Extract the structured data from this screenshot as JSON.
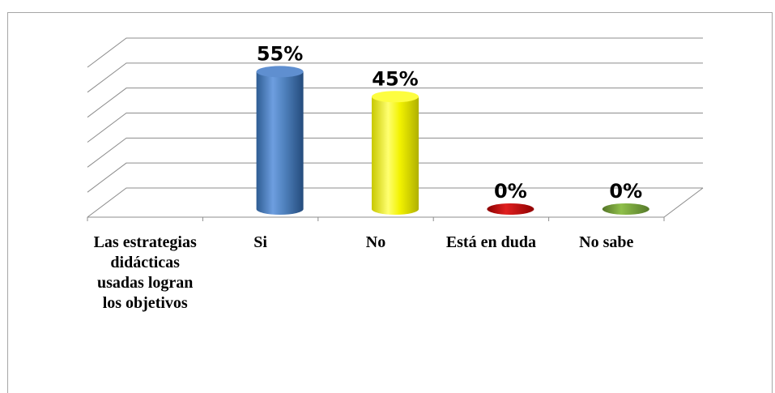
{
  "chart_data": {
    "type": "bar",
    "style": "3d-cylinder",
    "categories": [
      "Las estrategias didácticas usadas logran los objetivos",
      "Si",
      "No",
      "Está en duda",
      "No sabe"
    ],
    "values": [
      null,
      55,
      45,
      0,
      0
    ],
    "data_labels": [
      "",
      "55%",
      "45%",
      "0%",
      "0%"
    ],
    "colors": [
      "",
      "#4f81bd",
      "#ffff00",
      "#c00000",
      "#77a03a"
    ],
    "ylim": [
      0,
      60
    ],
    "grid": true,
    "legend": "none",
    "title": "",
    "xlabel": "",
    "ylabel": ""
  }
}
